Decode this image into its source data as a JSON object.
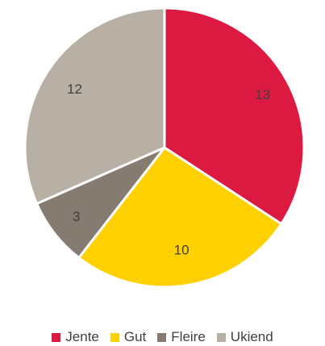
{
  "chart_data": {
    "type": "pie",
    "categories": [
      "Jente",
      "Gut",
      "Fleire",
      "Ukiend"
    ],
    "values": [
      13,
      10,
      3,
      12
    ],
    "colors": [
      "#dc1a41",
      "#ffd100",
      "#857b70",
      "#b8b0a5"
    ],
    "data_labels": [
      "13",
      "10",
      "3",
      "12"
    ],
    "legend_position": "bottom"
  }
}
